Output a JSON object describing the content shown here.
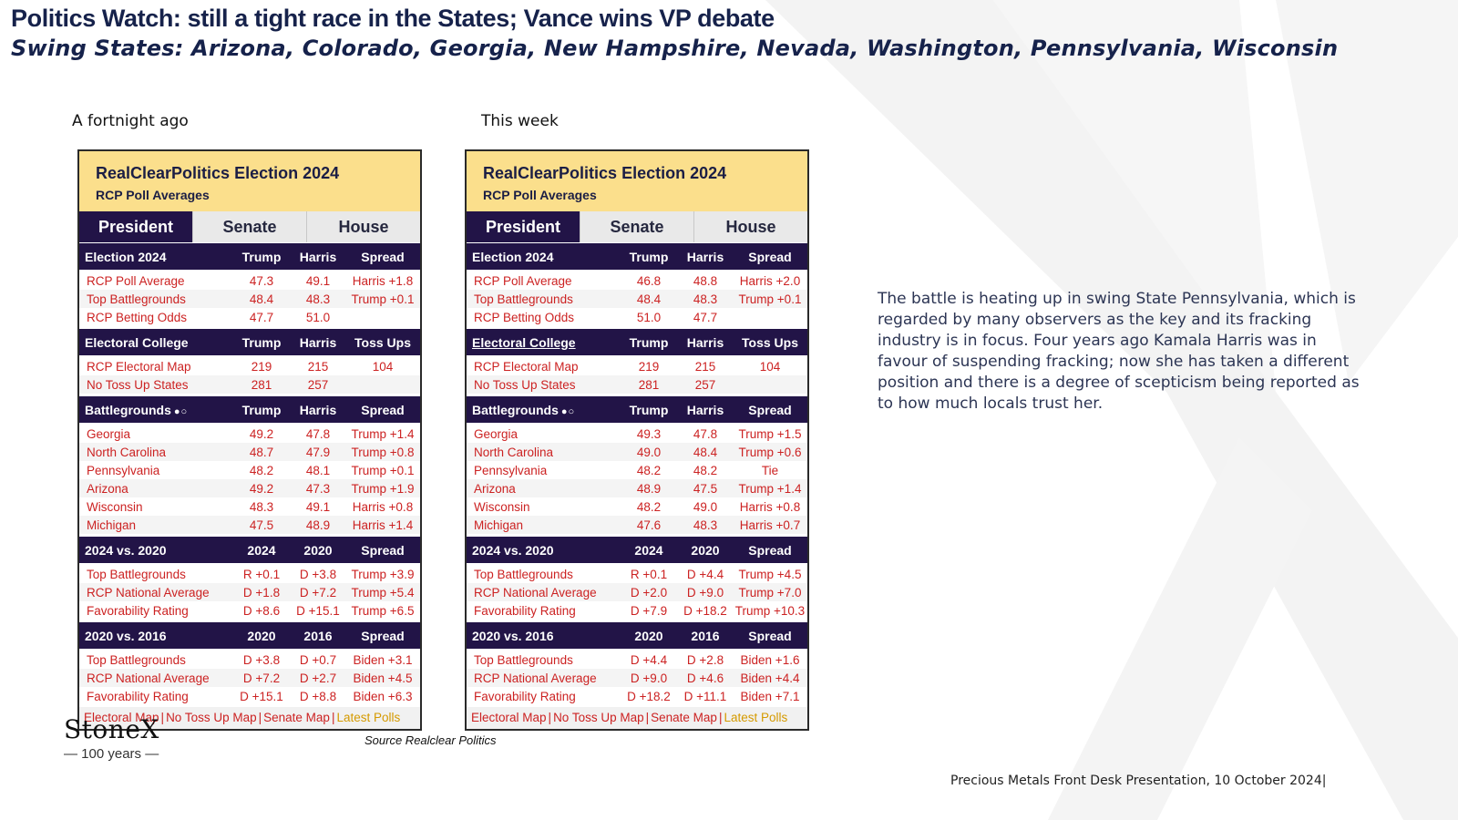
{
  "slide": {
    "title": "Politics Watch: still a tight race in the States; Vance wins VP debate",
    "subtitle": "Swing States: Arizona, Colorado, Georgia, New Hampshire, Nevada, Washington, Pennsylvania, Wisconsin",
    "label_left": "A fortnight ago",
    "label_right": "This week",
    "commentary": "The battle is heating up in swing State Pennsylvania, which is regarded by many observers as the key and its fracking industry is in focus.  Four years ago Kamala Harris was in favour of suspending fracking; now she has taken a different position and there is a degree of scepticism being reported as to how much locals trust her.",
    "source": "Source Realclear Politics",
    "logo": {
      "word": "StoneX",
      "sub": "— 100 years —"
    },
    "footer": "Precious Metals Front Desk Presentation, 10 October 2024|"
  },
  "left": {
    "title": "RealClearPolitics Election 2024",
    "subtitle": "RCP Poll Averages",
    "tabs": [
      "President",
      "Senate",
      "House"
    ],
    "sections": [
      {
        "head": [
          "Election 2024",
          "Trump",
          "Harris",
          "Spread"
        ],
        "rows": [
          [
            "RCP Poll Average",
            "47.3",
            "49.1",
            "Harris +1.8"
          ],
          [
            "Top Battlegrounds",
            "48.4",
            "48.3",
            "Trump +0.1"
          ],
          [
            "RCP Betting Odds",
            "47.7",
            "51.0",
            ""
          ]
        ]
      },
      {
        "head": [
          "Electoral College",
          "Trump",
          "Harris",
          "Toss Ups"
        ],
        "rows": [
          [
            "RCP Electoral Map",
            "219",
            "215",
            "104"
          ],
          [
            "No Toss Up States",
            "281",
            "257",
            ""
          ]
        ]
      },
      {
        "head": [
          "Battlegrounds",
          "Trump",
          "Harris",
          "Spread"
        ],
        "rows": [
          [
            "Georgia",
            "49.2",
            "47.8",
            "Trump +1.4"
          ],
          [
            "North Carolina",
            "48.7",
            "47.9",
            "Trump +0.8"
          ],
          [
            "Pennsylvania",
            "48.2",
            "48.1",
            "Trump +0.1"
          ],
          [
            "Arizona",
            "49.2",
            "47.3",
            "Trump +1.9"
          ],
          [
            "Wisconsin",
            "48.3",
            "49.1",
            "Harris +0.8"
          ],
          [
            "Michigan",
            "47.5",
            "48.9",
            "Harris +1.4"
          ]
        ]
      },
      {
        "head": [
          "2024 vs. 2020",
          "2024",
          "2020",
          "Spread"
        ],
        "rows": [
          [
            "Top Battlegrounds",
            "R +0.1",
            "D +3.8",
            "Trump +3.9"
          ],
          [
            "RCP National Average",
            "D +1.8",
            "D +7.2",
            "Trump +5.4"
          ],
          [
            "Favorability Rating",
            "D +8.6",
            "D +15.1",
            "Trump +6.5"
          ]
        ]
      },
      {
        "head": [
          "2020 vs. 2016",
          "2020",
          "2016",
          "Spread"
        ],
        "rows": [
          [
            "Top Battlegrounds",
            "D +3.8",
            "D +0.7",
            "Biden +3.1"
          ],
          [
            "RCP National Average",
            "D +7.2",
            "D +2.7",
            "Biden +4.5"
          ],
          [
            "Favorability Rating",
            "D +15.1",
            "D +8.8",
            "Biden +6.3"
          ]
        ]
      }
    ],
    "links": [
      "Electoral Map",
      "No Toss Up Map",
      "Senate Map",
      "Latest Polls"
    ]
  },
  "right": {
    "title": "RealClearPolitics Election 2024",
    "subtitle": "RCP Poll Averages",
    "tabs": [
      "President",
      "Senate",
      "House"
    ],
    "sections": [
      {
        "head": [
          "Election 2024",
          "Trump",
          "Harris",
          "Spread"
        ],
        "rows": [
          [
            "RCP Poll Average",
            "46.8",
            "48.8",
            "Harris +2.0"
          ],
          [
            "Top Battlegrounds",
            "48.4",
            "48.3",
            "Trump +0.1"
          ],
          [
            "RCP Betting Odds",
            "51.0",
            "47.7",
            ""
          ]
        ]
      },
      {
        "head": [
          "Electoral College",
          "Trump",
          "Harris",
          "Toss Ups"
        ],
        "rows": [
          [
            "RCP Electoral Map",
            "219",
            "215",
            "104"
          ],
          [
            "No Toss Up States",
            "281",
            "257",
            ""
          ]
        ]
      },
      {
        "head": [
          "Battlegrounds",
          "Trump",
          "Harris",
          "Spread"
        ],
        "rows": [
          [
            "Georgia",
            "49.3",
            "47.8",
            "Trump +1.5"
          ],
          [
            "North Carolina",
            "49.0",
            "48.4",
            "Trump +0.6"
          ],
          [
            "Pennsylvania",
            "48.2",
            "48.2",
            "Tie"
          ],
          [
            "Arizona",
            "48.9",
            "47.5",
            "Trump +1.4"
          ],
          [
            "Wisconsin",
            "48.2",
            "49.0",
            "Harris +0.8"
          ],
          [
            "Michigan",
            "47.6",
            "48.3",
            "Harris +0.7"
          ]
        ]
      },
      {
        "head": [
          "2024 vs. 2020",
          "2024",
          "2020",
          "Spread"
        ],
        "rows": [
          [
            "Top Battlegrounds",
            "R +0.1",
            "D +4.4",
            "Trump +4.5"
          ],
          [
            "RCP National Average",
            "D +2.0",
            "D +9.0",
            "Trump +7.0"
          ],
          [
            "Favorability Rating",
            "D +7.9",
            "D +18.2",
            "Trump +10.3"
          ]
        ]
      },
      {
        "head": [
          "2020 vs. 2016",
          "2020",
          "2016",
          "Spread"
        ],
        "rows": [
          [
            "Top Battlegrounds",
            "D +4.4",
            "D +2.8",
            "Biden +1.6"
          ],
          [
            "RCP National Average",
            "D +9.0",
            "D +4.6",
            "Biden +4.4"
          ],
          [
            "Favorability Rating",
            "D +18.2",
            "D +11.1",
            "Biden +7.1"
          ]
        ]
      }
    ],
    "links": [
      "Electoral Map",
      "No Toss Up Map",
      "Senate Map",
      "Latest Polls"
    ]
  }
}
